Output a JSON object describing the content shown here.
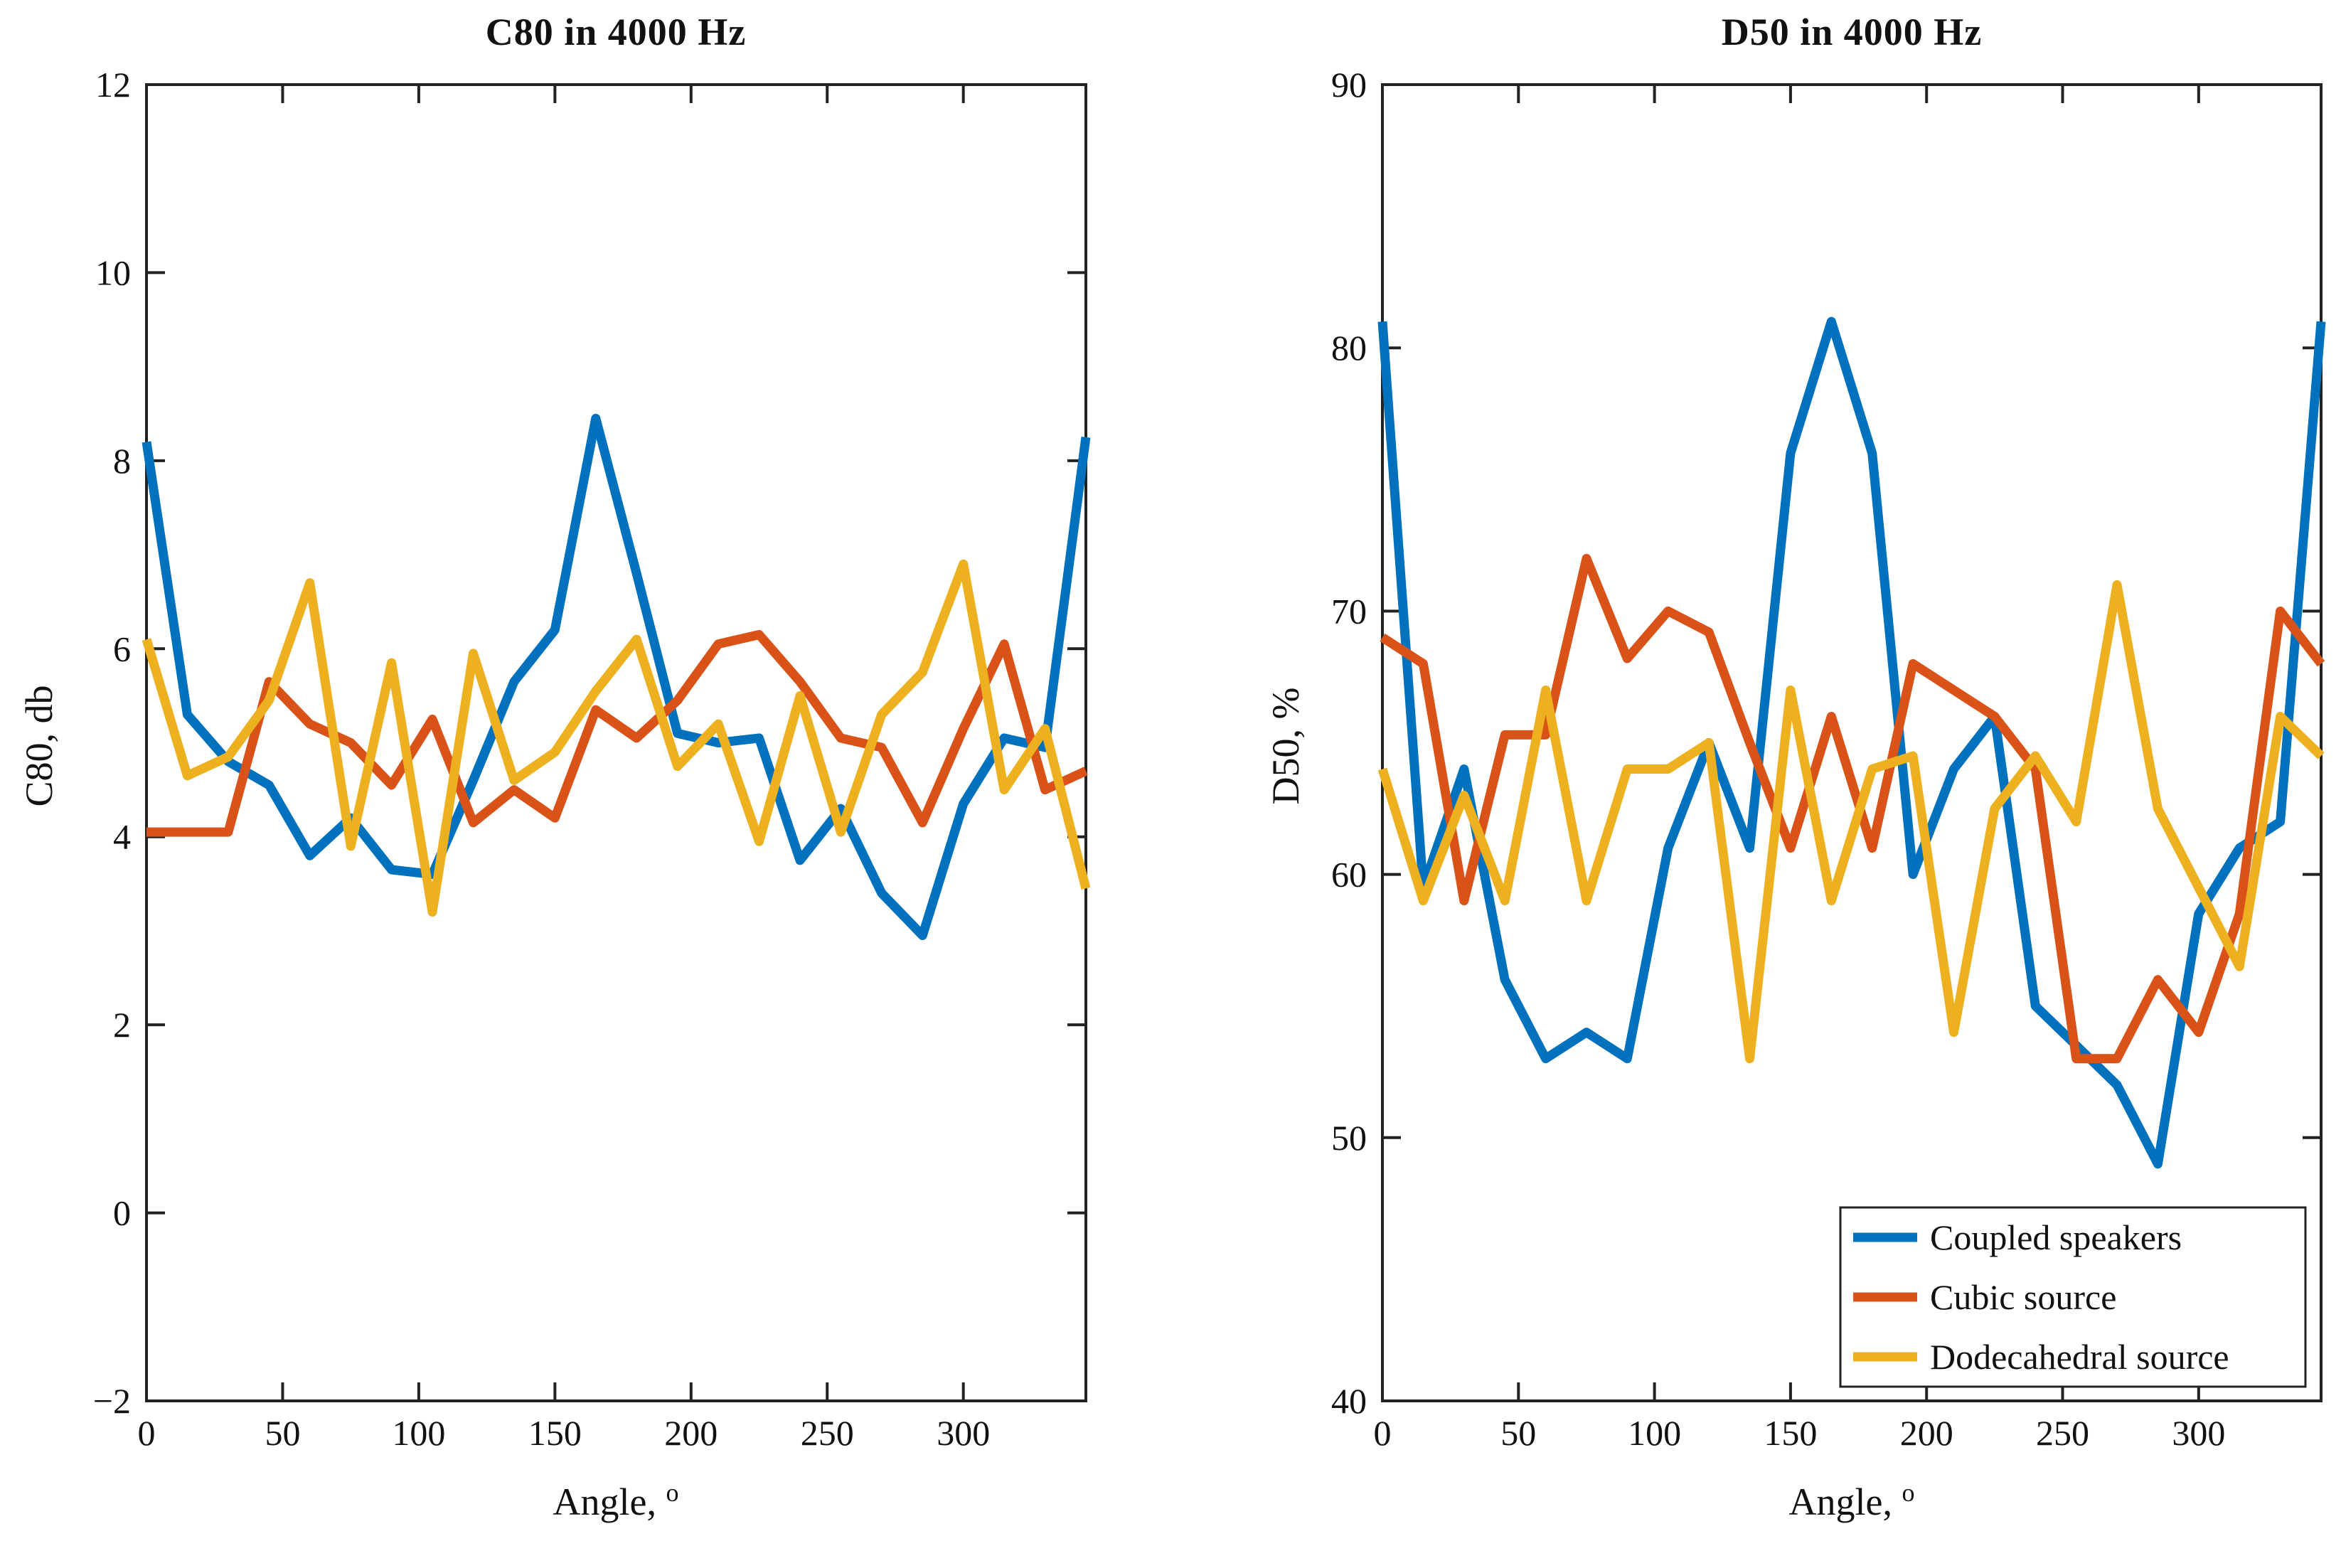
{
  "chart_data": [
    {
      "type": "line",
      "title": "C80 in 4000 Hz",
      "xlabel": "Angle,",
      "xlabel_sup": "o",
      "ylabel": "C80, db",
      "xlim": [
        0,
        345
      ],
      "ylim": [
        -2,
        12
      ],
      "grid": false,
      "xticks": [
        {
          "v": 0,
          "label": "0"
        },
        {
          "v": 50,
          "label": "50"
        },
        {
          "v": 100,
          "label": "100"
        },
        {
          "v": 150,
          "label": "150"
        },
        {
          "v": 200,
          "label": "200"
        },
        {
          "v": 250,
          "label": "250"
        },
        {
          "v": 300,
          "label": "300"
        }
      ],
      "yticks": [
        {
          "v": 12,
          "label": "12"
        },
        {
          "v": 10,
          "label": "10"
        },
        {
          "v": 8,
          "label": "8"
        },
        {
          "v": 6,
          "label": "6"
        },
        {
          "v": 4,
          "label": "4"
        },
        {
          "v": 2,
          "label": "2"
        },
        {
          "v": 0,
          "label": "0"
        },
        {
          "v": -2,
          "label": "−2"
        }
      ],
      "x": [
        0,
        15,
        30,
        45,
        60,
        75,
        90,
        105,
        120,
        135,
        150,
        165,
        180,
        195,
        210,
        225,
        240,
        255,
        270,
        285,
        300,
        315,
        330,
        345
      ],
      "series": [
        {
          "name": "Coupled speakers",
          "color": "#0072BD",
          "values": [
            8.2,
            5.3,
            4.8,
            4.55,
            3.8,
            4.2,
            3.65,
            3.6,
            4.6,
            5.65,
            6.2,
            8.45,
            6.8,
            5.1,
            5.0,
            5.05,
            3.75,
            4.3,
            3.4,
            2.95,
            4.35,
            5.05,
            4.95,
            8.25
          ]
        },
        {
          "name": "Cubic source",
          "color": "#D95319",
          "values": [
            4.05,
            4.05,
            4.05,
            5.65,
            5.2,
            5.0,
            4.55,
            5.25,
            4.15,
            4.5,
            4.2,
            5.35,
            5.05,
            5.45,
            6.05,
            6.15,
            5.65,
            5.05,
            4.95,
            4.15,
            5.15,
            6.05,
            4.5,
            4.7
          ]
        },
        {
          "name": "Dodecahedral source",
          "color": "#EDB120",
          "values": [
            6.1,
            4.65,
            4.85,
            5.45,
            6.7,
            3.9,
            5.85,
            3.2,
            5.95,
            4.6,
            4.9,
            5.55,
            6.1,
            4.75,
            5.2,
            3.95,
            5.5,
            4.05,
            5.3,
            5.75,
            6.9,
            4.5,
            5.15,
            3.45
          ]
        }
      ],
      "legend": null
    },
    {
      "type": "line",
      "title": "D50 in 4000 Hz",
      "xlabel": "Angle,",
      "xlabel_sup": "o",
      "ylabel": "D50, %",
      "xlim": [
        0,
        345
      ],
      "ylim": [
        40,
        90
      ],
      "grid": false,
      "xticks": [
        {
          "v": 0,
          "label": "0"
        },
        {
          "v": 50,
          "label": "50"
        },
        {
          "v": 100,
          "label": "100"
        },
        {
          "v": 150,
          "label": "150"
        },
        {
          "v": 200,
          "label": "200"
        },
        {
          "v": 250,
          "label": "250"
        },
        {
          "v": 300,
          "label": "300"
        }
      ],
      "yticks": [
        {
          "v": 90,
          "label": "90"
        },
        {
          "v": 80,
          "label": "80"
        },
        {
          "v": 70,
          "label": "70"
        },
        {
          "v": 60,
          "label": "60"
        },
        {
          "v": 50,
          "label": "50"
        },
        {
          "v": 40,
          "label": "40"
        }
      ],
      "x": [
        0,
        15,
        30,
        45,
        60,
        75,
        90,
        105,
        120,
        135,
        150,
        165,
        180,
        195,
        210,
        225,
        240,
        255,
        270,
        285,
        300,
        315,
        330,
        345
      ],
      "series": [
        {
          "name": "Coupled speakers",
          "color": "#0072BD",
          "values": [
            81,
            59.5,
            64,
            56,
            53,
            54,
            53,
            61,
            65,
            61,
            76,
            81,
            76,
            60,
            64,
            66,
            55,
            53.5,
            52,
            49,
            58.5,
            61,
            62,
            81
          ]
        },
        {
          "name": "Cubic source",
          "color": "#D95319",
          "values": [
            69,
            68,
            59,
            65.3,
            65.3,
            72,
            68.2,
            70,
            69.2,
            65,
            61,
            66,
            61,
            68,
            67,
            66,
            64,
            53,
            53,
            56,
            54,
            58.5,
            70,
            68
          ]
        },
        {
          "name": "Dodecahedral source",
          "color": "#EDB120",
          "values": [
            64,
            59,
            63,
            59,
            67,
            59,
            64,
            64,
            65,
            53,
            67,
            59,
            64,
            64.5,
            54,
            62.5,
            64.5,
            62,
            71,
            62.5,
            59.5,
            56.5,
            66,
            64.5
          ]
        }
      ],
      "legend": {
        "position": "southeast",
        "entries": [
          "Coupled speakers",
          "Cubic source",
          "Dodecahedral source"
        ]
      }
    }
  ]
}
